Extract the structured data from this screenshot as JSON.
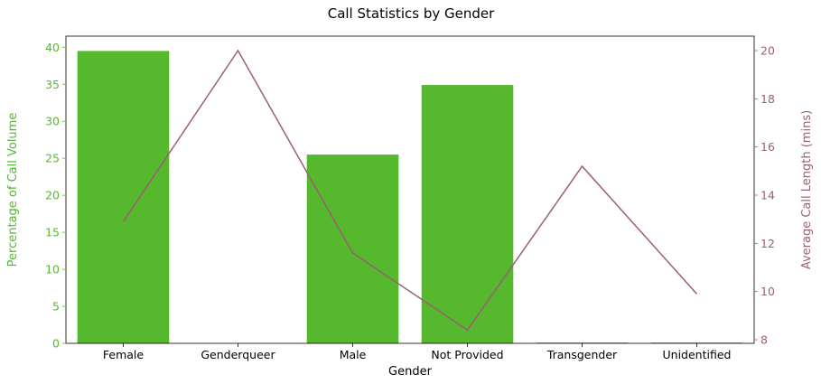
{
  "chart_data": {
    "type": "bar",
    "title": "Call Statistics by Gender",
    "xlabel": "Gender",
    "ylabel_left": "Percentage of Call Volume",
    "ylabel_right": "Average Call Length (mins)",
    "categories": [
      "Female",
      "Genderqueer",
      "Male",
      "Not Provided",
      "Transgender",
      "Unidentified"
    ],
    "series": [
      {
        "axis": "left",
        "type": "bar",
        "values": [
          39.5,
          0.0,
          25.5,
          34.9,
          0.1,
          0.1
        ]
      },
      {
        "axis": "right",
        "type": "line",
        "values": [
          12.9,
          20.0,
          11.6,
          8.4,
          15.2,
          9.9
        ]
      }
    ],
    "ylim_left": [
      0,
      41.5
    ],
    "ylim_right": [
      7.85,
      20.6
    ],
    "yticks_left": [
      0,
      5,
      10,
      15,
      20,
      25,
      30,
      35,
      40
    ],
    "yticks_right": [
      8,
      10,
      12,
      14,
      16,
      18,
      20
    ],
    "grid": false,
    "colors": {
      "bar": "#55b82d",
      "line": "#9a5f77",
      "left_axis": "#55b82d",
      "right_axis": "#9a5f77",
      "text": "#000000"
    }
  }
}
